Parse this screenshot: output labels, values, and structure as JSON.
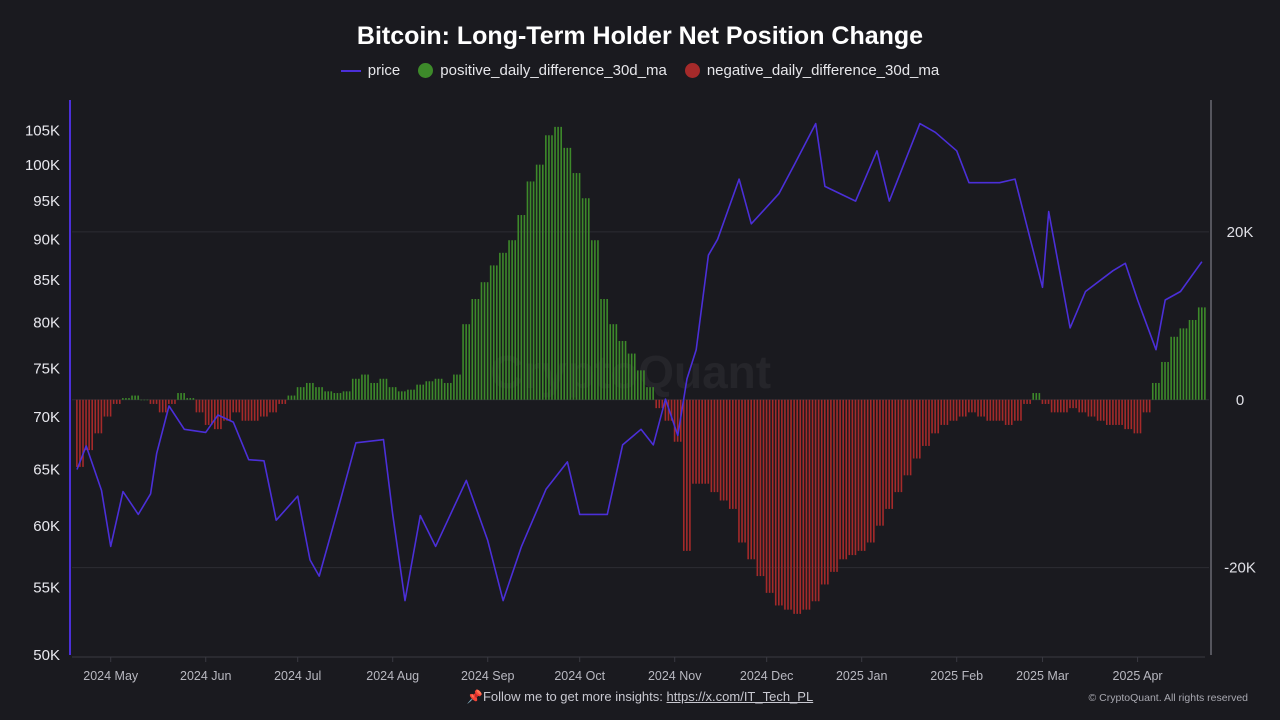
{
  "chart_data": {
    "type": "bar+line",
    "title": "Bitcoin: Long-Term Holder Net Position Change",
    "legend": {
      "placement": "top-center",
      "entries": [
        "price",
        "positive_daily_difference_30d_ma",
        "negative_daily_difference_30d_ma"
      ]
    },
    "colors": {
      "price": "#4b2fd8",
      "positive": "#3d8a2a",
      "negative": "#a52a2a",
      "background": "#1a1a1f"
    },
    "x_ticks": [
      "2024 May",
      "2024 Jun",
      "2024 Jul",
      "2024 Aug",
      "2024 Sep",
      "2024 Oct",
      "2024 Nov",
      "2024 Dec",
      "2025 Jan",
      "2025 Feb",
      "2025 Mar",
      "2025 Apr"
    ],
    "x_tick_dates": [
      "2024-05-01",
      "2024-06-01",
      "2024-07-01",
      "2024-08-01",
      "2024-09-01",
      "2024-10-01",
      "2024-11-01",
      "2024-12-01",
      "2025-01-01",
      "2025-02-01",
      "2025-03-01",
      "2025-04-01"
    ],
    "xlim": [
      "2024-04-20",
      "2025-04-23"
    ],
    "left_axis": {
      "scale": "log",
      "ylim": [
        50000,
        109600
      ],
      "ticks": [
        50000,
        55000,
        60000,
        65000,
        70000,
        75000,
        80000,
        85000,
        90000,
        95000,
        100000,
        105000
      ],
      "tick_labels": [
        "50K",
        "55K",
        "60K",
        "65K",
        "70K",
        "75K",
        "80K",
        "85K",
        "90K",
        "95K",
        "100K",
        "105K"
      ]
    },
    "right_axis": {
      "scale": "linear",
      "ylim": [
        -30400,
        35700
      ],
      "ticks": [
        -20000,
        0,
        20000
      ],
      "tick_labels": [
        "-20K",
        "0",
        "20K"
      ]
    },
    "grid": "horizontal at right-axis ticks",
    "price": [
      [
        "2024-04-20",
        65000
      ],
      [
        "2024-04-23",
        67200
      ],
      [
        "2024-04-28",
        63100
      ],
      [
        "2024-05-01",
        58300
      ],
      [
        "2024-05-05",
        63000
      ],
      [
        "2024-05-10",
        61000
      ],
      [
        "2024-05-14",
        62800
      ],
      [
        "2024-05-16",
        66500
      ],
      [
        "2024-05-20",
        71100
      ],
      [
        "2024-05-25",
        68800
      ],
      [
        "2024-06-01",
        68500
      ],
      [
        "2024-06-05",
        70200
      ],
      [
        "2024-06-10",
        69500
      ],
      [
        "2024-06-15",
        65900
      ],
      [
        "2024-06-20",
        65800
      ],
      [
        "2024-06-24",
        60500
      ],
      [
        "2024-07-01",
        62600
      ],
      [
        "2024-07-05",
        57200
      ],
      [
        "2024-07-08",
        55900
      ],
      [
        "2024-07-15",
        62300
      ],
      [
        "2024-07-20",
        67500
      ],
      [
        "2024-07-29",
        67800
      ],
      [
        "2024-08-01",
        61000
      ],
      [
        "2024-08-05",
        54000
      ],
      [
        "2024-08-10",
        60900
      ],
      [
        "2024-08-15",
        58300
      ],
      [
        "2024-08-25",
        64000
      ],
      [
        "2024-09-01",
        58800
      ],
      [
        "2024-09-06",
        54000
      ],
      [
        "2024-09-12",
        58300
      ],
      [
        "2024-09-20",
        63200
      ],
      [
        "2024-09-27",
        65700
      ],
      [
        "2024-10-01",
        61000
      ],
      [
        "2024-10-10",
        61000
      ],
      [
        "2024-10-15",
        67300
      ],
      [
        "2024-10-21",
        68800
      ],
      [
        "2024-10-25",
        67300
      ],
      [
        "2024-10-29",
        71800
      ],
      [
        "2024-11-02",
        68200
      ],
      [
        "2024-11-05",
        73900
      ],
      [
        "2024-11-08",
        77000
      ],
      [
        "2024-11-12",
        88000
      ],
      [
        "2024-11-15",
        90000
      ],
      [
        "2024-11-22",
        98000
      ],
      [
        "2024-11-26",
        92000
      ],
      [
        "2024-12-05",
        96000
      ],
      [
        "2024-12-10",
        100000
      ],
      [
        "2024-12-17",
        106000
      ],
      [
        "2024-12-20",
        97000
      ],
      [
        "2024-12-30",
        95000
      ],
      [
        "2025-01-06",
        102000
      ],
      [
        "2025-01-10",
        95000
      ],
      [
        "2025-01-20",
        106000
      ],
      [
        "2025-01-25",
        104700
      ],
      [
        "2025-02-01",
        102000
      ],
      [
        "2025-02-05",
        97500
      ],
      [
        "2025-02-15",
        97500
      ],
      [
        "2025-02-20",
        98000
      ],
      [
        "2025-02-25",
        90000
      ],
      [
        "2025-03-01",
        84100
      ],
      [
        "2025-03-03",
        93600
      ],
      [
        "2025-03-10",
        79400
      ],
      [
        "2025-03-15",
        83600
      ],
      [
        "2025-03-24",
        86100
      ],
      [
        "2025-03-28",
        87000
      ],
      [
        "2025-04-01",
        82600
      ],
      [
        "2025-04-07",
        77000
      ],
      [
        "2025-04-10",
        82600
      ],
      [
        "2025-04-15",
        83600
      ],
      [
        "2025-04-22",
        87200
      ]
    ],
    "daily_difference_30d_ma": [
      [
        "2024-04-21",
        -8000
      ],
      [
        "2024-04-24",
        -6000
      ],
      [
        "2024-04-27",
        -4000
      ],
      [
        "2024-04-30",
        -2000
      ],
      [
        "2024-05-03",
        -500
      ],
      [
        "2024-05-06",
        200
      ],
      [
        "2024-05-09",
        500
      ],
      [
        "2024-05-12",
        0
      ],
      [
        "2024-05-15",
        -500
      ],
      [
        "2024-05-18",
        -1500
      ],
      [
        "2024-05-21",
        -500
      ],
      [
        "2024-05-24",
        800
      ],
      [
        "2024-05-27",
        200
      ],
      [
        "2024-05-30",
        -1500
      ],
      [
        "2024-06-02",
        -3000
      ],
      [
        "2024-06-05",
        -3500
      ],
      [
        "2024-06-08",
        -2500
      ],
      [
        "2024-06-11",
        -1500
      ],
      [
        "2024-06-14",
        -2500
      ],
      [
        "2024-06-17",
        -2500
      ],
      [
        "2024-06-20",
        -2000
      ],
      [
        "2024-06-23",
        -1500
      ],
      [
        "2024-06-26",
        -500
      ],
      [
        "2024-06-29",
        500
      ],
      [
        "2024-07-02",
        1500
      ],
      [
        "2024-07-05",
        2000
      ],
      [
        "2024-07-08",
        1500
      ],
      [
        "2024-07-11",
        1000
      ],
      [
        "2024-07-14",
        800
      ],
      [
        "2024-07-17",
        1000
      ],
      [
        "2024-07-20",
        2500
      ],
      [
        "2024-07-23",
        3000
      ],
      [
        "2024-07-26",
        2000
      ],
      [
        "2024-07-29",
        2500
      ],
      [
        "2024-08-01",
        1500
      ],
      [
        "2024-08-04",
        1000
      ],
      [
        "2024-08-07",
        1200
      ],
      [
        "2024-08-10",
        1800
      ],
      [
        "2024-08-13",
        2200
      ],
      [
        "2024-08-16",
        2500
      ],
      [
        "2024-08-19",
        2000
      ],
      [
        "2024-08-22",
        3000
      ],
      [
        "2024-08-25",
        9000
      ],
      [
        "2024-08-28",
        12000
      ],
      [
        "2024-08-31",
        14000
      ],
      [
        "2024-09-03",
        16000
      ],
      [
        "2024-09-06",
        17500
      ],
      [
        "2024-09-09",
        19000
      ],
      [
        "2024-09-12",
        22000
      ],
      [
        "2024-09-15",
        26000
      ],
      [
        "2024-09-18",
        28000
      ],
      [
        "2024-09-21",
        31500
      ],
      [
        "2024-09-24",
        32500
      ],
      [
        "2024-09-27",
        30000
      ],
      [
        "2024-09-30",
        27000
      ],
      [
        "2024-10-03",
        24000
      ],
      [
        "2024-10-06",
        19000
      ],
      [
        "2024-10-09",
        12000
      ],
      [
        "2024-10-12",
        9000
      ],
      [
        "2024-10-15",
        7000
      ],
      [
        "2024-10-18",
        5500
      ],
      [
        "2024-10-21",
        3500
      ],
      [
        "2024-10-24",
        1500
      ],
      [
        "2024-10-27",
        -1000
      ],
      [
        "2024-10-30",
        -2500
      ],
      [
        "2024-11-02",
        -5000
      ],
      [
        "2024-11-05",
        -18000
      ],
      [
        "2024-11-08",
        -10000
      ],
      [
        "2024-11-11",
        -10000
      ],
      [
        "2024-11-14",
        -11000
      ],
      [
        "2024-11-17",
        -12000
      ],
      [
        "2024-11-20",
        -13000
      ],
      [
        "2024-11-23",
        -17000
      ],
      [
        "2024-11-26",
        -19000
      ],
      [
        "2024-11-29",
        -21000
      ],
      [
        "2024-12-02",
        -23000
      ],
      [
        "2024-12-05",
        -24500
      ],
      [
        "2024-12-08",
        -25000
      ],
      [
        "2024-12-11",
        -25500
      ],
      [
        "2024-12-14",
        -25000
      ],
      [
        "2024-12-17",
        -24000
      ],
      [
        "2024-12-20",
        -22000
      ],
      [
        "2024-12-23",
        -20500
      ],
      [
        "2024-12-26",
        -19000
      ],
      [
        "2024-12-29",
        -18500
      ],
      [
        "2025-01-01",
        -18000
      ],
      [
        "2025-01-04",
        -17000
      ],
      [
        "2025-01-07",
        -15000
      ],
      [
        "2025-01-10",
        -13000
      ],
      [
        "2025-01-13",
        -11000
      ],
      [
        "2025-01-16",
        -9000
      ],
      [
        "2025-01-19",
        -7000
      ],
      [
        "2025-01-22",
        -5500
      ],
      [
        "2025-01-25",
        -4000
      ],
      [
        "2025-01-28",
        -3000
      ],
      [
        "2025-01-31",
        -2500
      ],
      [
        "2025-02-03",
        -2000
      ],
      [
        "2025-02-06",
        -1500
      ],
      [
        "2025-02-09",
        -2000
      ],
      [
        "2025-02-12",
        -2500
      ],
      [
        "2025-02-15",
        -2500
      ],
      [
        "2025-02-18",
        -3000
      ],
      [
        "2025-02-21",
        -2500
      ],
      [
        "2025-02-24",
        -500
      ],
      [
        "2025-02-27",
        800
      ],
      [
        "2025-03-02",
        -500
      ],
      [
        "2025-03-05",
        -1500
      ],
      [
        "2025-03-08",
        -1500
      ],
      [
        "2025-03-11",
        -1000
      ],
      [
        "2025-03-14",
        -1500
      ],
      [
        "2025-03-17",
        -2000
      ],
      [
        "2025-03-20",
        -2500
      ],
      [
        "2025-03-23",
        -3000
      ],
      [
        "2025-03-26",
        -3000
      ],
      [
        "2025-03-29",
        -3500
      ],
      [
        "2025-04-01",
        -4000
      ],
      [
        "2025-04-04",
        -1500
      ],
      [
        "2025-04-07",
        2000
      ],
      [
        "2025-04-10",
        4500
      ],
      [
        "2025-04-13",
        7500
      ],
      [
        "2025-04-16",
        8500
      ],
      [
        "2025-04-19",
        9500
      ],
      [
        "2025-04-22",
        11000
      ]
    ]
  },
  "footer": {
    "pin_icon": "pushpin-icon",
    "text": "Follow me to get more insights: ",
    "link": "https://x.com/IT_Tech_PL",
    "copyright": "© CryptoQuant. All rights reserved"
  },
  "watermark": "CryptoQuant"
}
